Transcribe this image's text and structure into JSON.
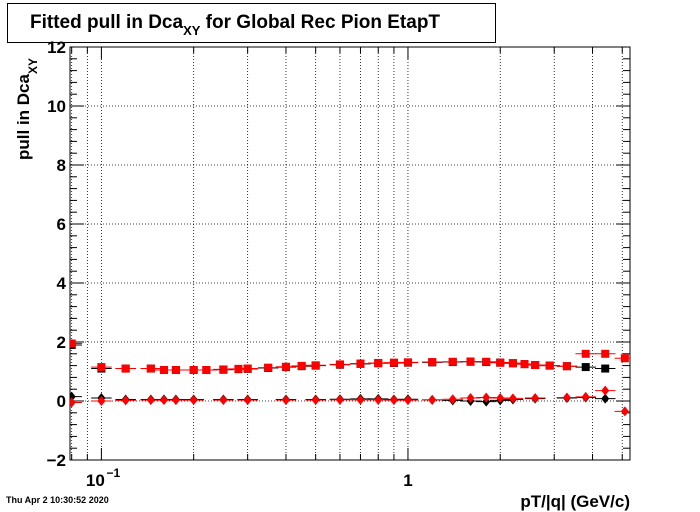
{
  "title": {
    "prefix": "Fitted pull in Dca",
    "subscript": "XY",
    "suffix": " for Global Rec Pion EtapT"
  },
  "timestamp": "Thu Apr  2 10:30:52 2020",
  "chart_data": {
    "type": "scatter",
    "title": "Fitted pull in Dca_XY for Global Rec Pion EtapT",
    "xlabel": "pT/|q| (GeV/c)",
    "ylabel_main": "pull in Dca",
    "ylabel_sub": "XY",
    "xscale": "log",
    "xlim": [
      0.079,
      5.3
    ],
    "ylim": [
      -2,
      12
    ],
    "xticks": [
      {
        "value": 0.1,
        "label": "10",
        "exp": "−1"
      },
      {
        "value": 1,
        "label": "1",
        "exp": ""
      }
    ],
    "yticks": [
      -2,
      0,
      2,
      4,
      6,
      8,
      10,
      12
    ],
    "ytick_labels": [
      "−2",
      "0",
      "2",
      "4",
      "6",
      "8",
      "10",
      "12"
    ],
    "grid": true,
    "series": [
      {
        "color": "#000000",
        "marker": "square",
        "points": [
          [
            0.08,
            1.9
          ],
          [
            0.1,
            1.1
          ],
          [
            0.12,
            1.1
          ],
          [
            0.145,
            1.1
          ],
          [
            0.16,
            1.05
          ],
          [
            0.175,
            1.05
          ],
          [
            0.2,
            1.05
          ],
          [
            0.22,
            1.05
          ],
          [
            0.25,
            1.06
          ],
          [
            0.28,
            1.08
          ],
          [
            0.3,
            1.09
          ],
          [
            0.35,
            1.12
          ],
          [
            0.4,
            1.15
          ],
          [
            0.45,
            1.18
          ],
          [
            0.5,
            1.2
          ],
          [
            0.6,
            1.23
          ],
          [
            0.7,
            1.26
          ],
          [
            0.8,
            1.28
          ],
          [
            0.9,
            1.29
          ],
          [
            1.0,
            1.3
          ],
          [
            1.2,
            1.31
          ],
          [
            1.4,
            1.32
          ],
          [
            1.6,
            1.33
          ],
          [
            1.8,
            1.32
          ],
          [
            2.0,
            1.3
          ],
          [
            2.2,
            1.28
          ],
          [
            2.4,
            1.25
          ],
          [
            2.6,
            1.22
          ],
          [
            2.9,
            1.2
          ],
          [
            3.3,
            1.18
          ],
          [
            3.8,
            1.15
          ],
          [
            4.4,
            1.1
          ]
        ]
      },
      {
        "color": "#000000",
        "marker": "diamond",
        "points": [
          [
            0.08,
            0.15
          ],
          [
            0.1,
            0.1
          ],
          [
            0.12,
            0.05
          ],
          [
            0.145,
            0.05
          ],
          [
            0.16,
            0.05
          ],
          [
            0.175,
            0.05
          ],
          [
            0.2,
            0.05
          ],
          [
            0.25,
            0.05
          ],
          [
            0.3,
            0.05
          ],
          [
            0.4,
            0.05
          ],
          [
            0.5,
            0.05
          ],
          [
            0.6,
            0.06
          ],
          [
            0.7,
            0.07
          ],
          [
            0.8,
            0.07
          ],
          [
            0.9,
            0.05
          ],
          [
            1.0,
            0.06
          ],
          [
            1.2,
            0.04
          ],
          [
            1.4,
            0.02
          ],
          [
            1.6,
            0.0
          ],
          [
            1.8,
            -0.02
          ],
          [
            2.0,
            0.02
          ],
          [
            2.2,
            0.05
          ],
          [
            2.6,
            0.08
          ],
          [
            3.3,
            0.1
          ],
          [
            3.8,
            0.12
          ],
          [
            4.4,
            0.08
          ]
        ]
      },
      {
        "color": "#ff0000",
        "marker": "square",
        "points": [
          [
            0.08,
            1.95
          ],
          [
            0.1,
            1.15
          ],
          [
            0.12,
            1.1
          ],
          [
            0.145,
            1.1
          ],
          [
            0.16,
            1.05
          ],
          [
            0.175,
            1.05
          ],
          [
            0.2,
            1.05
          ],
          [
            0.22,
            1.05
          ],
          [
            0.25,
            1.07
          ],
          [
            0.28,
            1.09
          ],
          [
            0.3,
            1.1
          ],
          [
            0.35,
            1.13
          ],
          [
            0.4,
            1.16
          ],
          [
            0.45,
            1.19
          ],
          [
            0.5,
            1.21
          ],
          [
            0.6,
            1.24
          ],
          [
            0.7,
            1.27
          ],
          [
            0.8,
            1.29
          ],
          [
            0.9,
            1.3
          ],
          [
            1.0,
            1.31
          ],
          [
            1.2,
            1.32
          ],
          [
            1.4,
            1.33
          ],
          [
            1.6,
            1.34
          ],
          [
            1.8,
            1.33
          ],
          [
            2.0,
            1.3
          ],
          [
            2.2,
            1.28
          ],
          [
            2.4,
            1.25
          ],
          [
            2.6,
            1.22
          ],
          [
            2.9,
            1.2
          ],
          [
            3.3,
            1.18
          ],
          [
            3.8,
            1.6
          ],
          [
            4.4,
            1.6
          ],
          [
            5.1,
            1.45
          ]
        ]
      },
      {
        "color": "#ff0000",
        "marker": "diamond",
        "points": [
          [
            0.08,
            -0.05
          ],
          [
            0.1,
            0.0
          ],
          [
            0.12,
            0.02
          ],
          [
            0.145,
            0.03
          ],
          [
            0.16,
            0.03
          ],
          [
            0.175,
            0.03
          ],
          [
            0.2,
            0.03
          ],
          [
            0.25,
            0.03
          ],
          [
            0.3,
            0.03
          ],
          [
            0.4,
            0.03
          ],
          [
            0.5,
            0.03
          ],
          [
            0.6,
            0.04
          ],
          [
            0.7,
            0.04
          ],
          [
            0.8,
            0.04
          ],
          [
            0.9,
            0.03
          ],
          [
            1.0,
            0.03
          ],
          [
            1.2,
            0.04
          ],
          [
            1.4,
            0.06
          ],
          [
            1.6,
            0.1
          ],
          [
            1.8,
            0.12
          ],
          [
            2.0,
            0.1
          ],
          [
            2.2,
            0.09
          ],
          [
            2.6,
            0.1
          ],
          [
            3.3,
            0.12
          ],
          [
            3.8,
            0.14
          ],
          [
            4.4,
            0.35
          ],
          [
            5.1,
            -0.35
          ]
        ]
      }
    ]
  }
}
